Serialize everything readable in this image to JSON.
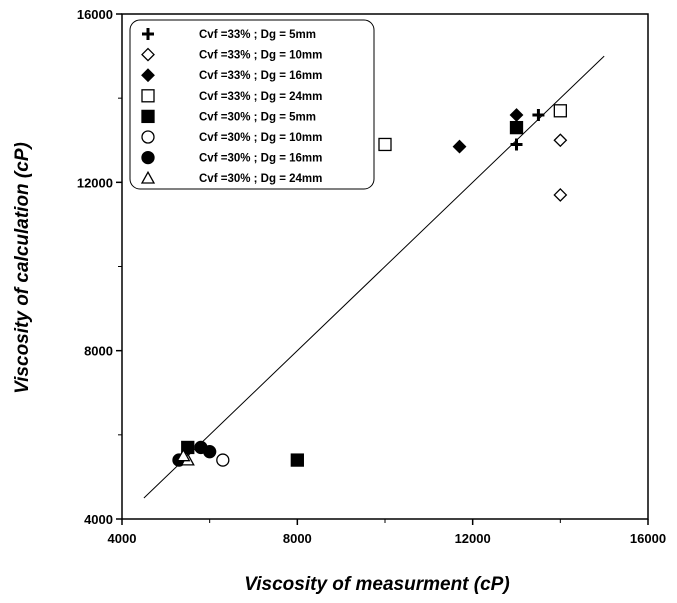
{
  "chart_data": {
    "type": "scatter",
    "title": "",
    "xlabel": "Viscosity of measurment (cP)",
    "ylabel": "Viscosity of calculation (cP)",
    "xlim": [
      4000,
      16000
    ],
    "ylim": [
      4000,
      16000
    ],
    "xticks": [
      "4000",
      "8000",
      "12000",
      "16000"
    ],
    "yticks": [
      "4000",
      "8000",
      "12000",
      "16000"
    ],
    "grid": false,
    "legend_position": "top-left",
    "reference_line": {
      "from": [
        4500,
        4500
      ],
      "to": [
        15000,
        15000
      ]
    },
    "series": [
      {
        "name": "Cvf =33% ; Dg = 5mm",
        "marker": "plus",
        "points": [
          [
            13000,
            12900
          ],
          [
            13500,
            13600
          ]
        ]
      },
      {
        "name": "Cvf =33% ;  Dg = 10mm",
        "marker": "diamond-open",
        "points": [
          [
            14000,
            13000
          ],
          [
            14000,
            11700
          ]
        ]
      },
      {
        "name": "Cvf =33% ; Dg = 16mm",
        "marker": "diamond-filled",
        "points": [
          [
            11700,
            12850
          ],
          [
            13000,
            13600
          ]
        ]
      },
      {
        "name": "Cvf =33% ; Dg = 24mm",
        "marker": "square-open",
        "points": [
          [
            10000,
            12900
          ],
          [
            14000,
            13700
          ]
        ]
      },
      {
        "name": "Cvf =30% ; Dg = 5mm",
        "marker": "square-filled",
        "points": [
          [
            5500,
            5700
          ],
          [
            8000,
            5400
          ],
          [
            13000,
            13300
          ]
        ]
      },
      {
        "name": "Cvf =30% ; Dg = 10mm",
        "marker": "circle-open",
        "points": [
          [
            6300,
            5400
          ]
        ]
      },
      {
        "name": "Cvf =30% ; Dg = 16mm",
        "marker": "circle-filled",
        "points": [
          [
            5300,
            5400
          ],
          [
            5800,
            5700
          ],
          [
            6000,
            5600
          ]
        ]
      },
      {
        "name": "Cvf =30% ; Dg = 24mm",
        "marker": "triangle-open",
        "points": [
          [
            5500,
            5400
          ],
          [
            5400,
            5500
          ]
        ]
      }
    ]
  }
}
